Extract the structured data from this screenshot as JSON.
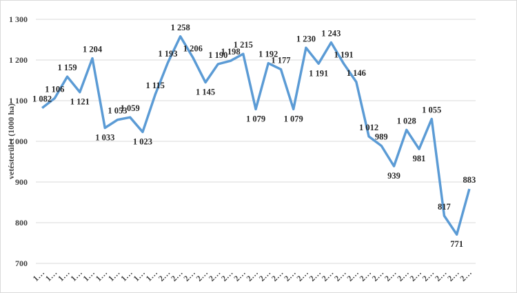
{
  "chart_data": {
    "type": "line",
    "y_label": "vetésterület (1000 ha)",
    "categories": [
      "1…",
      "1…",
      "1…",
      "1…",
      "1…",
      "1…",
      "1…",
      "1…",
      "1…",
      "1…",
      "2…",
      "2…",
      "2…",
      "2…",
      "2…",
      "2…",
      "2…",
      "2…",
      "2…",
      "2…",
      "2…",
      "2…",
      "2…",
      "2…",
      "2…",
      "2…",
      "2…",
      "2…",
      "2…",
      "2…",
      "2…",
      "2…",
      "2…",
      "2…",
      "2…"
    ],
    "series": [
      {
        "color": "#5b9bd5",
        "values": [
          1082,
          1106,
          1159,
          1121,
          1204,
          1033,
          1053,
          1059,
          1023,
          1115,
          1193,
          1258,
          1206,
          1145,
          1190,
          1198,
          1215,
          1079,
          1192,
          1177,
          1079,
          1230,
          1191,
          1243,
          1191,
          1146,
          1012,
          989,
          939,
          1028,
          981,
          1055,
          817,
          771,
          883
        ],
        "value_labels": [
          "1 082",
          "1 106",
          "1 159",
          "1 121",
          "1 204",
          "1 033",
          "1 053",
          "1 059",
          "1 023",
          "1 115",
          "1 193",
          "1 258",
          "1 206",
          "1 145",
          "1 190",
          "1 198",
          "1 215",
          "1 079",
          "1 192",
          "1 177",
          "1 079",
          "1 230",
          "1 191",
          "1 243",
          "1 191",
          "1 146",
          "1 012",
          "989",
          "939",
          "1 028",
          "981",
          "1 055",
          "817",
          "771",
          "883"
        ]
      }
    ],
    "ylim": [
      700,
      1300
    ],
    "yticks": [
      700,
      800,
      900,
      {
        "value": 1000,
        "label": "1 000"
      },
      {
        "value": 1100,
        "label": "1 100"
      },
      {
        "value": 1200,
        "label": "1 200"
      },
      {
        "value": 1300,
        "label": "1 300"
      }
    ],
    "grid": true
  }
}
